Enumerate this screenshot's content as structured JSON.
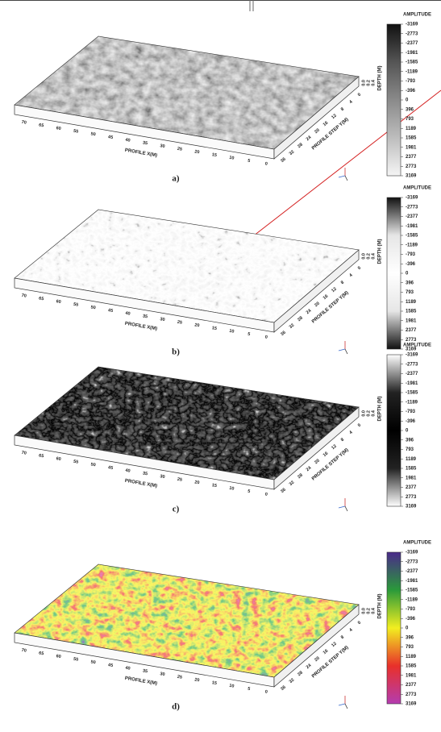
{
  "axes": {
    "x_title": "PROFILE X(M)",
    "y_title": "PROFILE STEP Y(M)",
    "z_title": "DEPTH (M)",
    "x_ticks": [
      "70",
      "65",
      "60",
      "55",
      "50",
      "45",
      "40",
      "35",
      "30",
      "25",
      "20",
      "15",
      "10",
      "5",
      "0"
    ],
    "y_ticks": [
      "36",
      "32",
      "28",
      "24",
      "20",
      "16",
      "12",
      "8",
      "4",
      "0"
    ],
    "z_ticks": [
      "0.0",
      "0.2",
      "0.4"
    ]
  },
  "colorbar": {
    "title": "AMPLITUDE",
    "labels": [
      "-3169",
      "-2773",
      "-2377",
      "-1981",
      "-1585",
      "-1189",
      "-793",
      "-396",
      "0",
      "396",
      "793",
      "1189",
      "1585",
      "1981",
      "2377",
      "2773",
      "3169"
    ]
  },
  "panels": [
    {
      "label": "a)",
      "colormap": [
        "#111111",
        "#555555",
        "#8a8a8a",
        "#bdbdbd",
        "#f5f5f5"
      ]
    },
    {
      "label": "b)",
      "colormap": [
        "#111111",
        "#e6e6e6",
        "#ffffff",
        "#e6e6e6",
        "#111111"
      ]
    },
    {
      "label": "c)",
      "colormap": [
        "#ffffff",
        "#222222",
        "#000000",
        "#222222",
        "#ffffff"
      ]
    },
    {
      "label": "d)",
      "colormap": [
        "#4a2a8a",
        "#2a9a3a",
        "#f2ee20",
        "#e8302a",
        "#b43cb0"
      ]
    }
  ]
}
